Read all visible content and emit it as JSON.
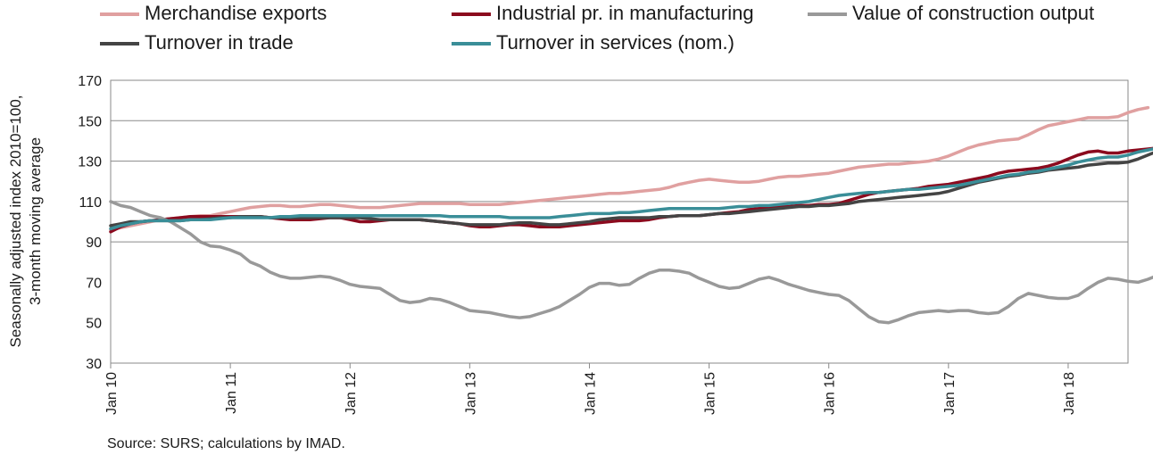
{
  "chart_data": {
    "type": "line",
    "title": "",
    "ylabel_line1": "Seasonally adjusted index 2010=100,",
    "ylabel_line2": "3-month moving average",
    "xlabel": "",
    "ylim": [
      30,
      170
    ],
    "yticks": [
      30,
      50,
      70,
      90,
      110,
      130,
      150,
      170
    ],
    "grid": "horizontal at 90, 110, 130, 150",
    "legend_placement": "top",
    "x_start": "Jan 10",
    "x_end": "Jul 18",
    "x_tick_labels": [
      "Jan 10",
      "Jan 11",
      "Jan 12",
      "Jan 13",
      "Jan 14",
      "Jan 15",
      "Jan 16",
      "Jan 17",
      "Jan 18"
    ],
    "source": "Source: SURS; calculations by IMAD.",
    "series": [
      {
        "name": "Merchandise exports",
        "color": "#e0a0a0",
        "values": [
          96,
          97,
          98,
          99,
          100,
          101,
          101.5,
          102,
          102.5,
          103,
          103,
          104,
          105,
          106,
          107,
          107.5,
          108,
          108,
          107.5,
          107.5,
          108,
          108.5,
          108.5,
          108,
          107.5,
          107,
          107,
          107,
          107.5,
          108,
          108.5,
          109,
          109,
          109,
          109,
          109,
          108.5,
          108.5,
          108.5,
          108.5,
          109,
          109.5,
          110,
          110.5,
          111,
          111.5,
          112,
          112.5,
          113,
          113.5,
          114,
          114,
          114.5,
          115,
          115.5,
          116,
          117,
          118.5,
          119.5,
          120.5,
          121,
          120.5,
          120,
          119.5,
          119.5,
          120,
          121,
          122,
          122.5,
          122.5,
          123,
          123.5,
          124,
          125,
          126,
          127,
          127.5,
          128,
          128.5,
          128.5,
          129,
          129.5,
          130,
          131,
          132.5,
          134.5,
          136.5,
          138,
          139,
          140,
          140.5,
          141,
          143,
          145.5,
          147.5,
          148.5,
          149.5,
          150.5,
          151.5,
          151.5,
          151.5,
          152,
          154,
          155.5,
          156.5
        ]
      },
      {
        "name": "Industrial pr. in manufacturing",
        "color": "#8b0a1e",
        "values": [
          95,
          97.5,
          99,
          100,
          100.5,
          101,
          101.5,
          102,
          102.5,
          102.5,
          102.5,
          102.5,
          102.5,
          102.5,
          102.5,
          102.5,
          102,
          101.5,
          101,
          101,
          101,
          101.5,
          102,
          102,
          101,
          100,
          100,
          100.5,
          101,
          101,
          101,
          101,
          100.5,
          100,
          99.5,
          99,
          98,
          97.5,
          97.5,
          98,
          98.5,
          98.5,
          98,
          97.5,
          97.5,
          97.5,
          98,
          98.5,
          99,
          99.5,
          100,
          100.5,
          100.5,
          100.5,
          101,
          102,
          102.5,
          103,
          103,
          103,
          103.5,
          104,
          104.5,
          105,
          106,
          106.5,
          107,
          107.5,
          107.5,
          108,
          108,
          108.5,
          108.5,
          109,
          110.5,
          112,
          113.5,
          114.5,
          115,
          115.5,
          116,
          116.5,
          117.5,
          118,
          118.5,
          119.5,
          120.5,
          121.5,
          122.5,
          124,
          125,
          125.5,
          126,
          126.5,
          127.5,
          129,
          131,
          133,
          134.5,
          135,
          134,
          134,
          135,
          135.5,
          136,
          136.5
        ]
      },
      {
        "name": "Value of construction output",
        "color": "#999999",
        "values": [
          110,
          108,
          107,
          105,
          103,
          102,
          100,
          97,
          94,
          90,
          88,
          87.5,
          86,
          84,
          80,
          78,
          75,
          73,
          72,
          72,
          72.5,
          73,
          72.5,
          71,
          69,
          68,
          67.5,
          67,
          64,
          61,
          60,
          60.5,
          62,
          61.5,
          60,
          58,
          56,
          55.5,
          55,
          54,
          53,
          52.5,
          53,
          54.5,
          56,
          58,
          61,
          64,
          67.5,
          69.5,
          69.5,
          68.5,
          69,
          72,
          74.5,
          76,
          76,
          75.5,
          74.5,
          72,
          70,
          68,
          67,
          67.5,
          69.5,
          71.5,
          72.5,
          71,
          69,
          67.5,
          66,
          65,
          64,
          63.5,
          61,
          57,
          53,
          50.5,
          50,
          51.5,
          53.5,
          55,
          55.5,
          56,
          55.5,
          56,
          56,
          55,
          54.5,
          55,
          58,
          62,
          64.5,
          63.5,
          62.5,
          62,
          62,
          63.5,
          67,
          70,
          72,
          71.5,
          70.5,
          70,
          71.5,
          73.5,
          75,
          76.5
        ]
      },
      {
        "name": "Turnover in trade",
        "color": "#444444",
        "values": [
          98,
          99,
          100,
          100,
          100.5,
          100.5,
          100.5,
          100.5,
          101,
          101,
          101.5,
          102,
          102,
          102.5,
          102.5,
          102.5,
          102,
          102,
          102,
          102,
          102,
          102,
          102,
          102,
          102,
          102,
          101.5,
          101,
          101,
          101,
          101,
          101,
          100.5,
          100,
          99.5,
          99,
          98.5,
          98.5,
          98.5,
          98.5,
          99,
          99.5,
          99.5,
          99,
          98.5,
          98.5,
          99,
          99.5,
          100,
          101,
          101.5,
          102,
          102,
          102,
          102,
          102.5,
          102.5,
          103,
          103,
          103,
          103.5,
          104,
          104,
          104.5,
          105,
          105.5,
          106,
          106.5,
          107,
          107.5,
          107.5,
          108,
          108,
          108.5,
          109,
          110,
          110.5,
          111,
          111.5,
          112,
          112.5,
          113,
          113.5,
          114,
          115,
          116.5,
          118,
          119.5,
          120.5,
          121.5,
          122.5,
          123,
          124,
          124.5,
          125.5,
          126,
          126.5,
          127,
          128,
          128.5,
          129,
          129,
          129.5,
          131,
          133,
          135,
          136
        ]
      },
      {
        "name": "Turnover in services (nom.)",
        "color": "#3a8e98",
        "values": [
          96.5,
          98,
          99,
          100,
          100.5,
          100.5,
          100.5,
          100.5,
          101,
          101,
          101,
          101.5,
          102,
          102,
          102,
          102,
          102,
          102.5,
          102.5,
          103,
          103,
          103,
          103,
          103,
          103,
          103,
          103,
          103,
          103,
          103,
          103,
          103,
          103,
          103,
          102.5,
          102.5,
          102.5,
          102.5,
          102.5,
          102.5,
          102,
          102,
          102,
          102,
          102,
          102.5,
          103,
          103.5,
          104,
          104,
          104,
          104.5,
          104.5,
          105,
          105.5,
          106,
          106.5,
          106.5,
          106.5,
          106.5,
          106.5,
          106.5,
          107,
          107.5,
          107.5,
          108,
          108,
          108.5,
          109,
          109.5,
          110,
          111,
          112,
          113,
          113.5,
          114,
          114.5,
          114.5,
          115,
          115.5,
          116,
          116,
          116.5,
          117,
          117.5,
          118,
          119,
          120,
          121,
          122,
          123,
          123.5,
          124.5,
          125,
          126,
          127,
          128,
          129.5,
          130.5,
          131.5,
          132,
          132,
          133,
          134.5,
          135.5,
          136.5
        ]
      }
    ]
  }
}
